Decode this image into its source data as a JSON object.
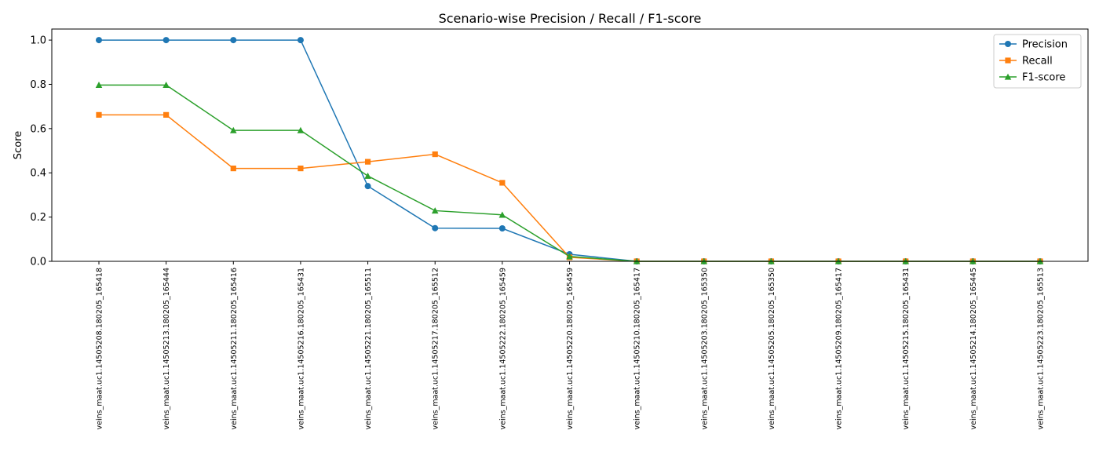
{
  "chart_data": {
    "type": "line",
    "title": "Scenario-wise Precision / Recall / F1-score",
    "xlabel": "",
    "ylabel": "Score",
    "ylim": [
      0,
      1.05
    ],
    "yticks": [
      "0.0",
      "0.2",
      "0.4",
      "0.6",
      "0.8",
      "1.0"
    ],
    "grid": false,
    "legend_position": "top-right",
    "categories": [
      "veins_maat.uc1.14505208.180205_165418",
      "veins_maat.uc1.14505213.180205_165444",
      "veins_maat.uc1.14505211.180205_165416",
      "veins_maat.uc1.14505216.180205_165431",
      "veins_maat.uc1.14505221.180205_165511",
      "veins_maat.uc1.14505217.180205_165512",
      "veins_maat.uc1.14505222.180205_165459",
      "veins_maat.uc1.14505220.180205_165459",
      "veins_maat.uc1.14505210.180205_165417",
      "veins_maat.uc1.14505203.180205_165350",
      "veins_maat.uc1.14505205.180205_165350",
      "veins_maat.uc1.14505209.180205_165417",
      "veins_maat.uc1.14505215.180205_165431",
      "veins_maat.uc1.14505214.180205_165445",
      "veins_maat.uc1.14505223.180205_165513"
    ],
    "series": [
      {
        "name": "Precision",
        "color": "#1f77b4",
        "marker": "circle",
        "values": [
          1.0,
          1.0,
          1.0,
          1.0,
          0.34,
          0.15,
          0.149,
          0.032,
          0,
          0,
          0,
          0,
          0,
          0,
          0
        ]
      },
      {
        "name": "Recall",
        "color": "#ff7f0e",
        "marker": "square",
        "values": [
          0.662,
          0.662,
          0.42,
          0.42,
          0.45,
          0.484,
          0.355,
          0.018,
          0,
          0,
          0,
          0,
          0,
          0,
          0
        ]
      },
      {
        "name": "F1-score",
        "color": "#2ca02c",
        "marker": "triangle",
        "values": [
          0.797,
          0.797,
          0.592,
          0.592,
          0.386,
          0.229,
          0.21,
          0.022,
          0,
          0,
          0,
          0,
          0,
          0,
          0
        ]
      }
    ]
  }
}
